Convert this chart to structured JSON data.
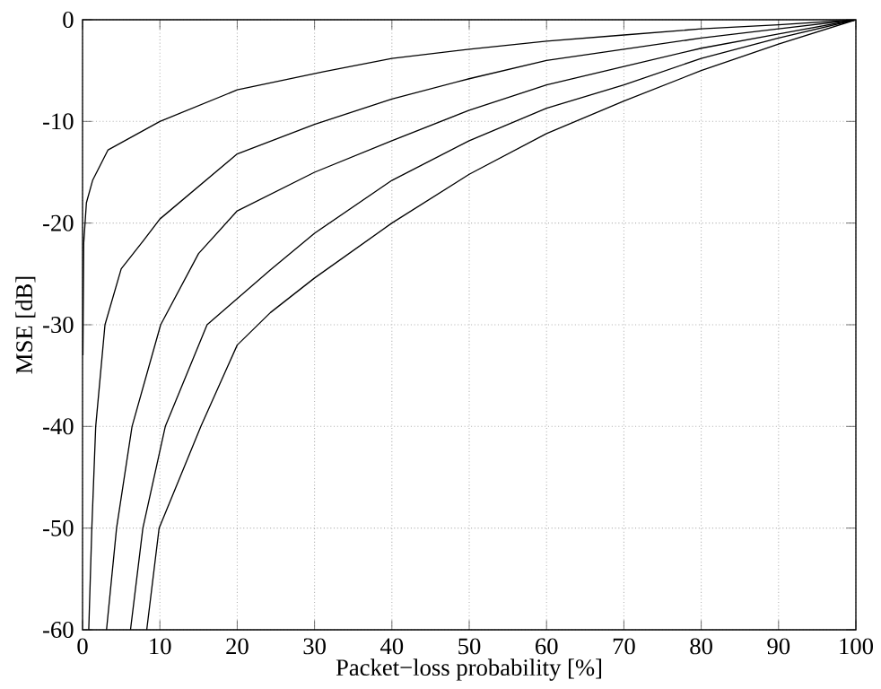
{
  "chart_data": {
    "type": "line",
    "xlabel": "Packet−loss probability [%]",
    "ylabel": "MSE [dB]",
    "xlim": [
      0,
      100
    ],
    "ylim": [
      -60,
      0
    ],
    "xticks": [
      0,
      10,
      20,
      30,
      40,
      50,
      60,
      70,
      80,
      90,
      100
    ],
    "yticks": [
      -60,
      -50,
      -40,
      -30,
      -20,
      -10,
      0
    ],
    "grid": true,
    "series": [
      {
        "color": "#000000",
        "x": [
          0.05,
          0.15,
          0.5,
          1.3,
          3.3,
          10,
          20,
          31.2,
          40,
          50,
          60,
          70,
          80,
          90,
          100
        ],
        "values": [
          -33,
          -22,
          -18,
          -15.8,
          -12.8,
          -10,
          -6.9,
          -5.1,
          -3.8,
          -2.9,
          -2.1,
          -1.5,
          -0.9,
          -0.5,
          0
        ]
      },
      {
        "color": "#000000",
        "x": [
          0.8,
          1.2,
          1.7,
          2.9,
          5,
          7.9,
          10,
          20,
          30,
          40,
          50,
          60,
          70,
          80,
          90,
          100
        ],
        "values": [
          -60,
          -50,
          -40,
          -30,
          -24.5,
          -21.7,
          -19.6,
          -13.2,
          -10.3,
          -7.8,
          -5.8,
          -4,
          -2.9,
          -1.8,
          -0.9,
          0
        ]
      },
      {
        "color": "#000000",
        "x": [
          3.1,
          4.4,
          6.4,
          10.1,
          15,
          20,
          30,
          40,
          50,
          60,
          70,
          80,
          90,
          100
        ],
        "values": [
          -60,
          -50,
          -40,
          -30,
          -23,
          -18.8,
          -15,
          -11.9,
          -8.9,
          -6.4,
          -4.6,
          -2.8,
          -1.4,
          0
        ]
      },
      {
        "color": "#000000",
        "x": [
          6.2,
          7.8,
          10.7,
          16.1,
          24.3,
          30,
          40,
          50,
          60,
          70,
          80,
          90,
          100
        ],
        "values": [
          -60,
          -50,
          -40,
          -30,
          -24.6,
          -21,
          -15.8,
          -11.9,
          -8.7,
          -6.4,
          -3.8,
          -1.8,
          0
        ]
      },
      {
        "color": "#000000",
        "x": [
          8.3,
          9.9,
          15.3,
          20,
          24.3,
          30,
          40,
          50,
          60,
          70,
          80,
          90,
          100
        ],
        "values": [
          -60,
          -50,
          -40,
          -32,
          -28.8,
          -25.4,
          -20,
          -15.2,
          -11.2,
          -8,
          -5,
          -2.4,
          0
        ]
      }
    ]
  }
}
